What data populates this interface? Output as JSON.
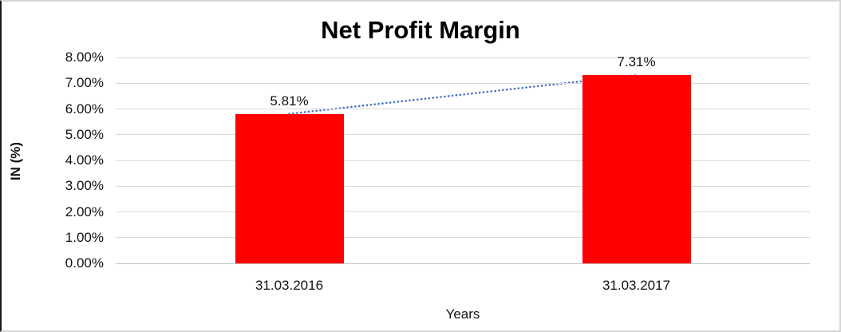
{
  "chart_data": {
    "type": "bar",
    "title": "Net Profit Margin",
    "xlabel": "Years",
    "ylabel": "IN (%)",
    "categories": [
      "31.03.2016",
      "31.03.2017"
    ],
    "series": [
      {
        "name": "Net Profit Margin",
        "values": [
          5.81,
          7.31
        ]
      }
    ],
    "data_labels": [
      "5.81%",
      "7.31%"
    ],
    "ylim": [
      0,
      8
    ],
    "ytick_step": 1,
    "ytick_labels": [
      "0.00%",
      "1.00%",
      "2.00%",
      "3.00%",
      "4.00%",
      "5.00%",
      "6.00%",
      "7.00%",
      "8.00%"
    ],
    "grid": true,
    "legend_position": "none",
    "bar_color": "#ff0000",
    "gridline_color": "#d9d9d9",
    "axis_line_color": "#bfbfbf",
    "text_color": "#000000",
    "trendline": {
      "type": "linear",
      "style": "dotted",
      "color": "#4472c4",
      "from_value": 5.81,
      "to_value": 7.31
    }
  }
}
